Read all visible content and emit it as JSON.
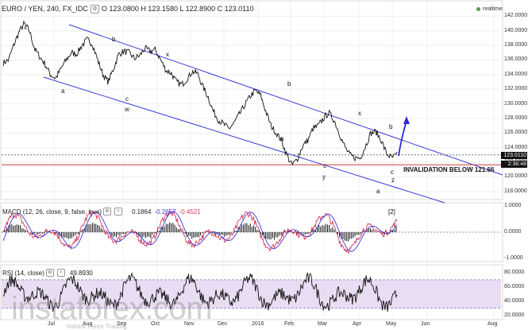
{
  "header": {
    "symbol": "EURO / YEN, 240, FX_IDC",
    "ohlc": "O 123.0800 H 123.1580 L 122.8900 C 123.0110",
    "realtime_label": "realtime"
  },
  "price_labels": {
    "last_price": "123.0110",
    "countdown": "2:38:48"
  },
  "annotations": {
    "invalidation": "INVALIDATION BELOW 121.66"
  },
  "watermark": {
    "brand": "instaforex.com",
    "tagline": "Instant Forex Trading"
  },
  "macd": {
    "label": "MACD (12, 26, close, 9, false, true)",
    "v1": "0.1864",
    "v2": "-0.2657",
    "v3": "-0.4521"
  },
  "rsi": {
    "label": "RSI (14, close)",
    "v1": "49.8930"
  },
  "colors": {
    "channel": "#3b3bd8",
    "invalidation_line": "#d23a3a",
    "macd_line": "#d4375a",
    "signal_line": "#3a3ad8",
    "rsi_band": "#e8ddf2",
    "projection_arrow": "#2a2ad8"
  },
  "chart_data": [
    {
      "type": "bar",
      "title": "EURO / YEN, 240, FX_IDC",
      "series": [
        {
          "values": [
            135.6,
            136.0,
            138.0,
            139.8,
            141.0,
            140.0,
            137.5,
            136.4,
            135.4,
            134.0,
            133.5,
            134.8,
            136.0,
            137.0,
            136.8,
            138.0,
            138.8,
            138.2,
            136.0,
            134.0,
            133.0,
            134.8,
            136.8,
            137.2,
            137.0,
            136.2,
            136.6,
            137.6,
            137.2,
            137.4,
            136.0,
            134.6,
            134.2,
            133.0,
            132.6,
            133.4,
            134.4,
            134.2,
            132.4,
            131.0,
            129.0,
            127.8,
            127.2,
            126.6,
            127.4,
            128.6,
            129.8,
            131.0,
            131.8,
            131.2,
            129.0,
            127.0,
            126.0,
            125.0,
            123.0,
            121.6,
            122.4,
            124.2,
            125.0,
            126.6,
            127.0,
            128.0,
            128.8,
            127.8,
            126.0,
            124.2,
            123.0,
            122.6,
            122.6,
            124.2,
            126.0,
            126.2,
            125.0,
            123.2,
            122.6,
            123.0
          ]
        }
      ],
      "ylim": [
        117,
        144
      ],
      "yticks": [
        "142.0000",
        "140.0000",
        "138.0000",
        "136.0000",
        "134.0000",
        "132.0000",
        "130.0000",
        "128.0000",
        "126.0000",
        "124.0000",
        "122.0000",
        "120.0000",
        "118.0000"
      ],
      "xticks": [
        "Jul",
        "Aug",
        "Sep",
        "Oct",
        "Nov",
        "Dec",
        "2016",
        "Feb",
        "Mar",
        "Apr",
        "May",
        "Jun",
        "Aug"
      ],
      "wave_labels": [
        "x",
        "a",
        "b",
        "c",
        "w",
        "x",
        "b",
        "a",
        "c",
        "y",
        "x",
        "b",
        "a",
        "c",
        "z",
        "[2]"
      ]
    },
    {
      "type": "line",
      "title": "MACD (12, 26, close, 9, false, true)",
      "yticks": [
        "1.0000",
        "0.0000",
        "-1.0000"
      ],
      "ylim": [
        -1.1,
        1.1
      ]
    },
    {
      "type": "line",
      "title": "RSI (14, close)",
      "yticks": [
        "80.0000",
        "60.0000",
        "40.0000",
        "20.0000"
      ],
      "ylim": [
        15,
        90
      ]
    }
  ]
}
